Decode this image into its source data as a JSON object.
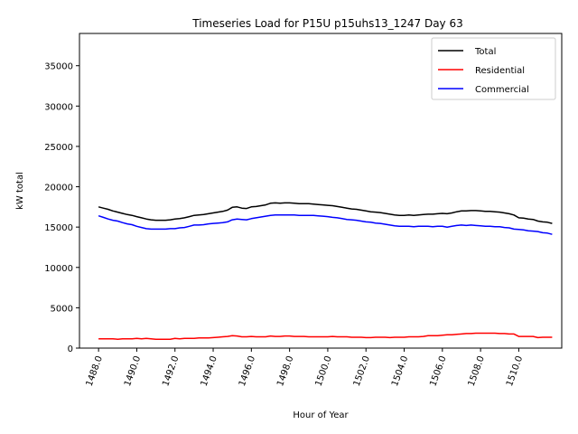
{
  "chart_data": {
    "type": "line",
    "title": "Timeseries Load for P15U p15uhs13_1247  Day 63",
    "xlabel": "Hour of Year",
    "ylabel": "kW total",
    "xlim": [
      1487.0,
      1512.25
    ],
    "ylim": [
      0,
      39000
    ],
    "xticks": [
      1488,
      1490,
      1492,
      1494,
      1496,
      1498,
      1500,
      1502,
      1504,
      1506,
      1508,
      1510
    ],
    "xtick_labels": [
      "1488.0",
      "1490.0",
      "1492.0",
      "1494.0",
      "1496.0",
      "1498.0",
      "1500.0",
      "1502.0",
      "1504.0",
      "1506.0",
      "1508.0",
      "1510.0"
    ],
    "yticks": [
      0,
      5000,
      10000,
      15000,
      20000,
      25000,
      30000,
      35000
    ],
    "ytick_labels": [
      "0",
      "5000",
      "10000",
      "15000",
      "20000",
      "25000",
      "30000",
      "35000"
    ],
    "legend_position": "top-right",
    "x": [
      1488.0,
      1488.25,
      1488.5,
      1488.75,
      1489.0,
      1489.25,
      1489.5,
      1489.75,
      1490.0,
      1490.25,
      1490.5,
      1490.75,
      1491.0,
      1491.25,
      1491.5,
      1491.75,
      1492.0,
      1492.25,
      1492.5,
      1492.75,
      1493.0,
      1493.25,
      1493.5,
      1493.75,
      1494.0,
      1494.25,
      1494.5,
      1494.75,
      1495.0,
      1495.25,
      1495.5,
      1495.75,
      1496.0,
      1496.25,
      1496.5,
      1496.75,
      1497.0,
      1497.25,
      1497.5,
      1497.75,
      1498.0,
      1498.25,
      1498.5,
      1498.75,
      1499.0,
      1499.25,
      1499.5,
      1499.75,
      1500.0,
      1500.25,
      1500.5,
      1500.75,
      1501.0,
      1501.25,
      1501.5,
      1501.75,
      1502.0,
      1502.25,
      1502.5,
      1502.75,
      1503.0,
      1503.25,
      1503.5,
      1503.75,
      1504.0,
      1504.25,
      1504.5,
      1504.75,
      1505.0,
      1505.25,
      1505.5,
      1505.75,
      1506.0,
      1506.25,
      1506.5,
      1506.75,
      1507.0,
      1507.25,
      1507.5,
      1507.75,
      1508.0,
      1508.25,
      1508.5,
      1508.75,
      1509.0,
      1509.25,
      1509.5,
      1509.75,
      1510.0,
      1510.25,
      1510.5,
      1510.75,
      1511.0,
      1511.25,
      1511.5,
      1511.75
    ],
    "series": [
      {
        "name": "Total",
        "color": "#000000",
        "values": [
          17500,
          17350,
          17200,
          17000,
          16850,
          16700,
          16550,
          16450,
          16300,
          16150,
          16000,
          15900,
          15850,
          15850,
          15850,
          15900,
          16000,
          16050,
          16150,
          16300,
          16450,
          16500,
          16550,
          16650,
          16750,
          16850,
          16950,
          17100,
          17450,
          17500,
          17350,
          17300,
          17500,
          17550,
          17650,
          17750,
          17950,
          18000,
          17950,
          18000,
          18000,
          17950,
          17900,
          17900,
          17900,
          17850,
          17800,
          17750,
          17700,
          17650,
          17550,
          17450,
          17350,
          17250,
          17200,
          17100,
          17000,
          16900,
          16850,
          16800,
          16700,
          16600,
          16500,
          16450,
          16450,
          16500,
          16450,
          16500,
          16550,
          16600,
          16600,
          16650,
          16700,
          16650,
          16750,
          16900,
          17000,
          17000,
          17050,
          17050,
          17000,
          16950,
          16950,
          16900,
          16850,
          16750,
          16650,
          16500,
          16150,
          16100,
          16000,
          15950,
          15750,
          15650,
          15600,
          15450
        ]
      },
      {
        "name": "Residential",
        "color": "#ff0000",
        "values": [
          1150,
          1150,
          1150,
          1150,
          1100,
          1150,
          1150,
          1150,
          1200,
          1150,
          1200,
          1150,
          1100,
          1100,
          1100,
          1100,
          1200,
          1150,
          1200,
          1200,
          1200,
          1250,
          1250,
          1250,
          1300,
          1350,
          1400,
          1450,
          1550,
          1500,
          1400,
          1400,
          1450,
          1400,
          1400,
          1400,
          1500,
          1450,
          1450,
          1500,
          1500,
          1450,
          1450,
          1450,
          1400,
          1400,
          1400,
          1400,
          1400,
          1450,
          1400,
          1400,
          1400,
          1350,
          1350,
          1350,
          1300,
          1300,
          1350,
          1350,
          1350,
          1300,
          1350,
          1350,
          1350,
          1400,
          1400,
          1400,
          1450,
          1550,
          1550,
          1550,
          1600,
          1650,
          1650,
          1700,
          1750,
          1800,
          1800,
          1850,
          1850,
          1850,
          1850,
          1850,
          1800,
          1800,
          1750,
          1750,
          1450,
          1450,
          1450,
          1450,
          1300,
          1350,
          1350,
          1350
        ]
      },
      {
        "name": "Commercial",
        "color": "#0000ff",
        "values": [
          16400,
          16200,
          16000,
          15850,
          15750,
          15550,
          15400,
          15300,
          15100,
          14950,
          14800,
          14750,
          14750,
          14750,
          14750,
          14800,
          14800,
          14900,
          14950,
          15100,
          15250,
          15250,
          15300,
          15400,
          15450,
          15500,
          15550,
          15650,
          15900,
          16000,
          15950,
          15900,
          16050,
          16150,
          16250,
          16350,
          16450,
          16500,
          16500,
          16500,
          16500,
          16500,
          16450,
          16450,
          16450,
          16450,
          16400,
          16350,
          16300,
          16200,
          16150,
          16050,
          15950,
          15900,
          15850,
          15750,
          15650,
          15600,
          15500,
          15450,
          15350,
          15250,
          15150,
          15100,
          15100,
          15100,
          15050,
          15100,
          15100,
          15100,
          15050,
          15100,
          15100,
          15000,
          15100,
          15200,
          15250,
          15200,
          15250,
          15200,
          15150,
          15100,
          15100,
          15050,
          15050,
          14950,
          14900,
          14750,
          14700,
          14650,
          14550,
          14500,
          14450,
          14300,
          14250,
          14100
        ]
      }
    ]
  }
}
